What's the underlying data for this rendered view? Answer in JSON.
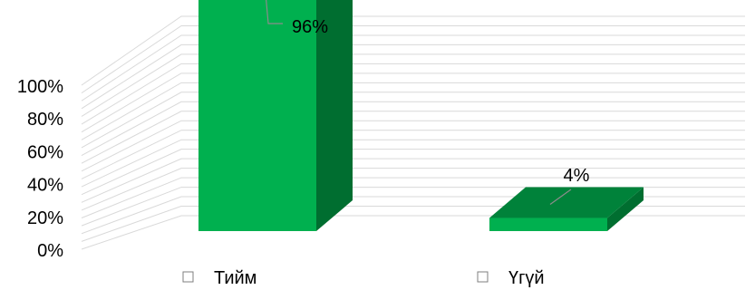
{
  "chart_data": {
    "type": "bar",
    "style": "3d-column",
    "categories": [
      "Тийм",
      "Үгүй"
    ],
    "series": [
      {
        "values": [
          96,
          4
        ]
      }
    ],
    "data_labels": [
      "96%",
      "4%"
    ],
    "y_ticks": [
      "0%",
      "20%",
      "40%",
      "60%",
      "80%",
      "100%"
    ],
    "ylim": [
      0,
      100
    ],
    "y_unit": "%",
    "grid": true,
    "legend_position": "bottom",
    "colors": {
      "front": "#00b04f",
      "top": "#00823a",
      "side": "#006e30",
      "grid": "#d9d9d9"
    }
  }
}
